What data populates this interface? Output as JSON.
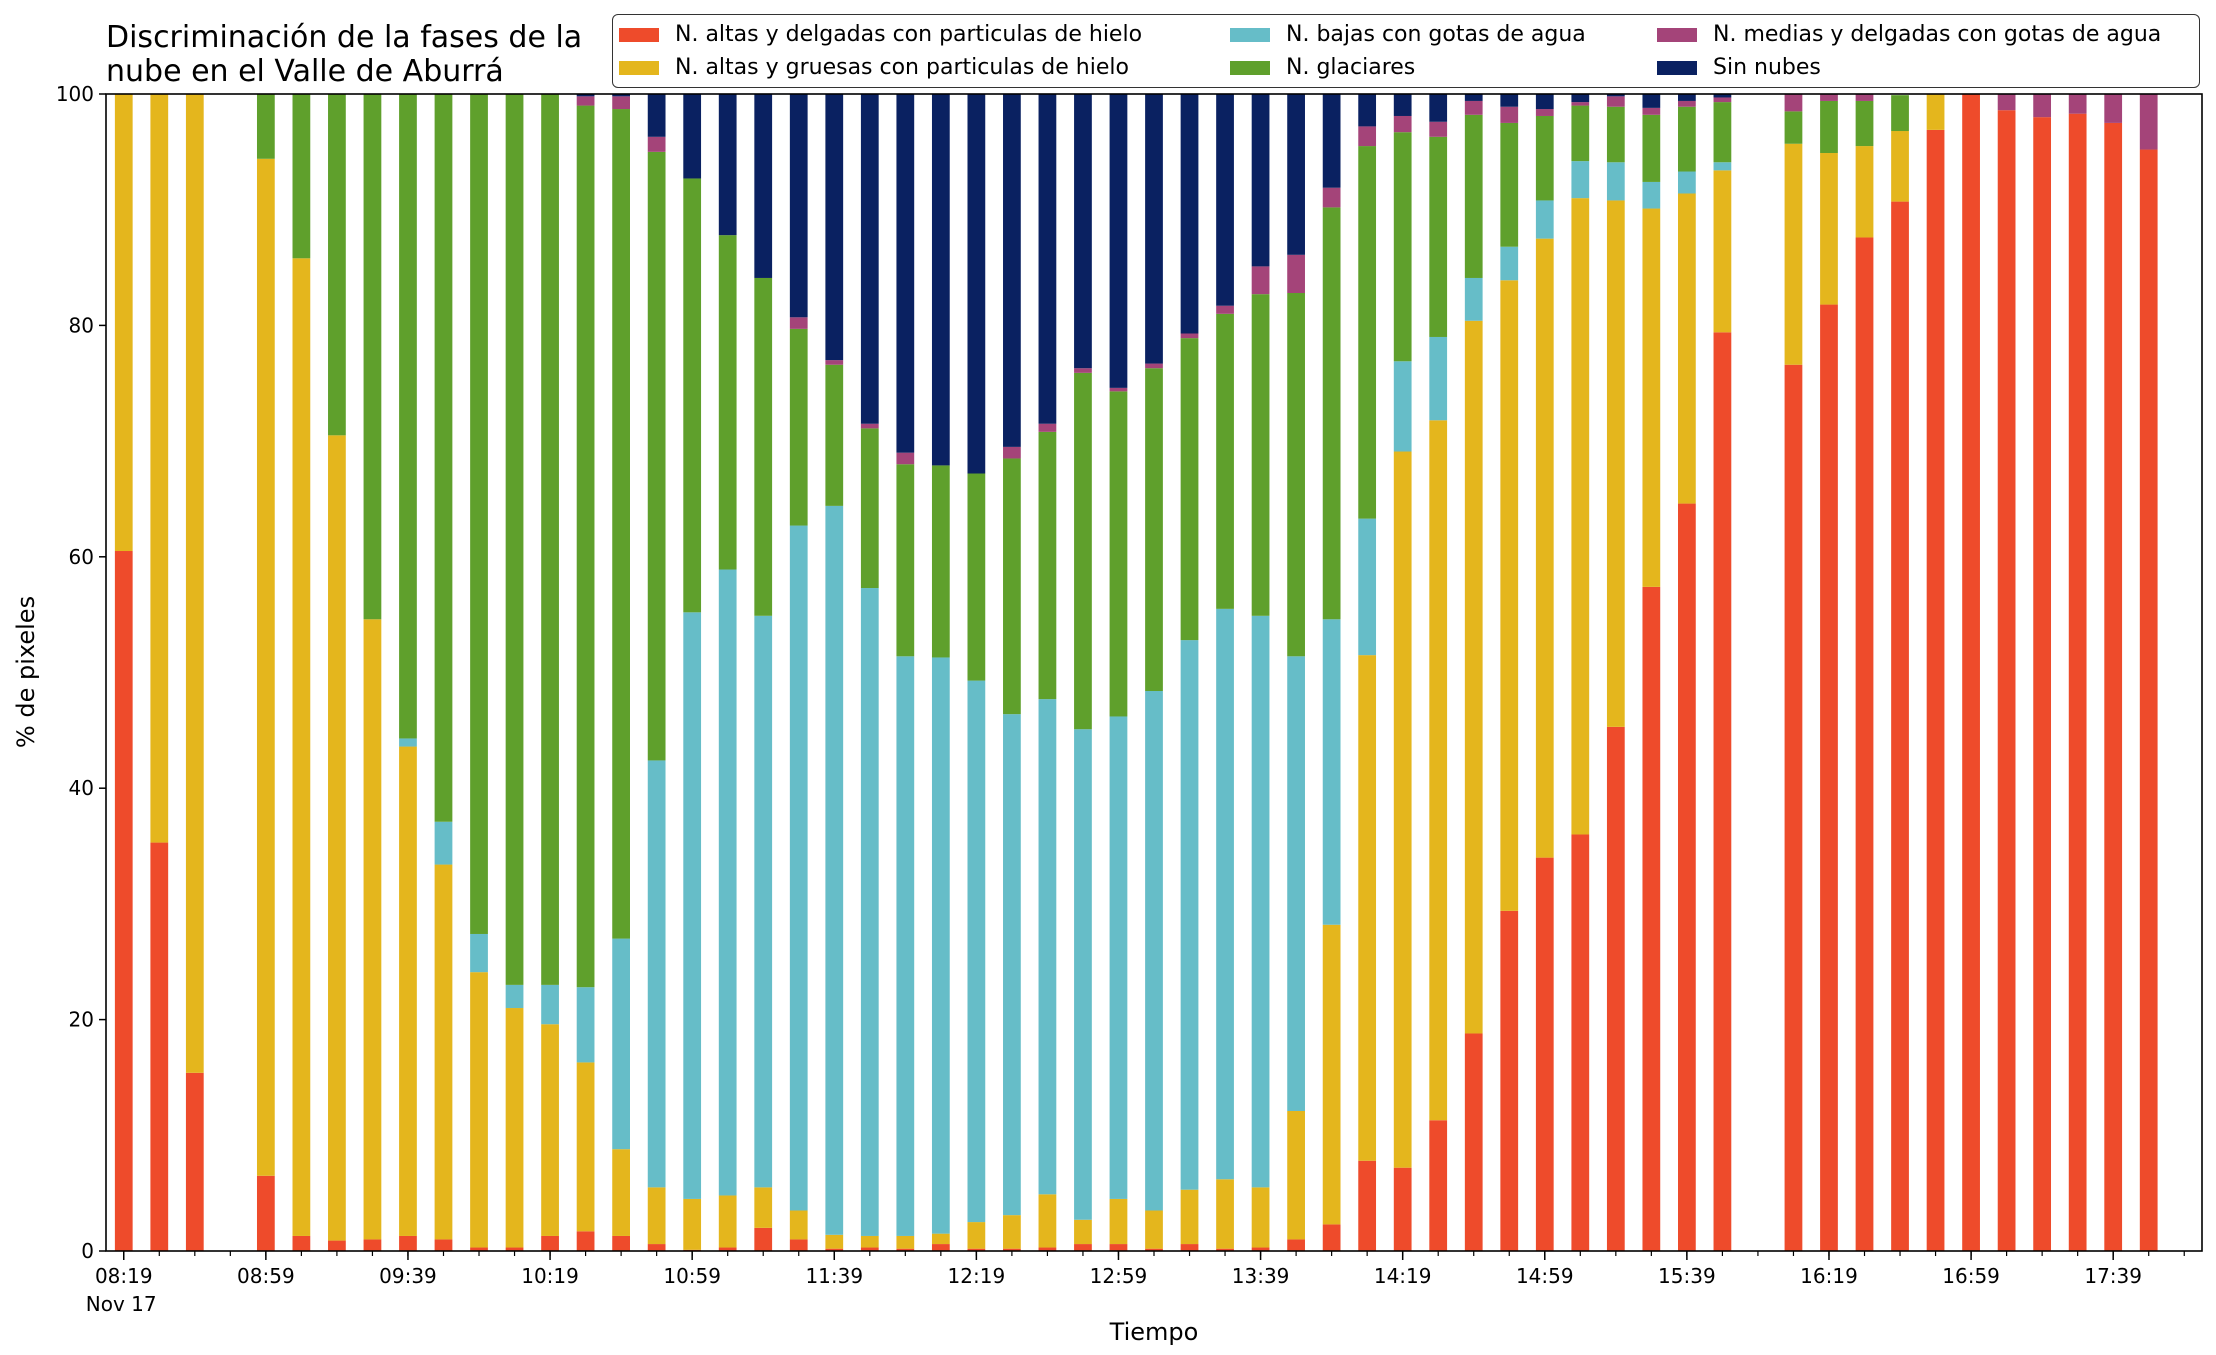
{
  "chart_data": {
    "type": "bar",
    "stacked": true,
    "title_lines": [
      "Discriminación de la fases de la",
      "nube en el Valle de Aburrá"
    ],
    "xlabel": "Tiempo",
    "ylabel": "% de pixeles",
    "ylim": [
      0,
      100
    ],
    "yticks": [
      0,
      20,
      40,
      60,
      80,
      100
    ],
    "xlim": [
      "08:14",
      "18:04"
    ],
    "bar_interval_minutes": 10,
    "x_tick_labels": [
      "08:19",
      "08:59",
      "09:39",
      "10:19",
      "10:59",
      "11:39",
      "12:19",
      "12:59",
      "13:39",
      "14:19",
      "14:59",
      "15:39",
      "16:19",
      "16:59",
      "17:39"
    ],
    "x_date_label": "Nov 17",
    "legend_position": "top-right",
    "x": [
      "08:19",
      "08:29",
      "08:39",
      "08:49",
      "08:59",
      "09:09",
      "09:19",
      "09:29",
      "09:39",
      "09:49",
      "09:59",
      "10:09",
      "10:19",
      "10:29",
      "10:39",
      "10:49",
      "10:59",
      "11:09",
      "11:19",
      "11:29",
      "11:39",
      "11:49",
      "11:59",
      "12:09",
      "12:19",
      "12:29",
      "12:39",
      "12:49",
      "12:59",
      "13:09",
      "13:19",
      "13:29",
      "13:39",
      "13:49",
      "13:59",
      "14:09",
      "14:19",
      "14:29",
      "14:39",
      "14:49",
      "14:59",
      "15:09",
      "15:19",
      "15:29",
      "15:39",
      "15:49",
      "15:59",
      "16:09",
      "16:19",
      "16:29",
      "16:39",
      "16:49",
      "16:59",
      "17:09",
      "17:19",
      "17:29",
      "17:39",
      "17:49"
    ],
    "series": [
      {
        "name": "N. altas y delgadas con particulas de hielo",
        "color": "#ee4b2b",
        "values": [
          60.5,
          35.3,
          15.4,
          null,
          6.5,
          1.3,
          0.9,
          1.0,
          1.3,
          1.0,
          0.3,
          0.3,
          1.3,
          1.7,
          1.3,
          0.6,
          0.1,
          0.3,
          2.0,
          1.0,
          0.2,
          0.3,
          0.2,
          0.6,
          0.2,
          0.2,
          0.3,
          0.6,
          0.6,
          0.2,
          0.6,
          0.2,
          0.3,
          1.0,
          2.3,
          7.8,
          7.2,
          11.3,
          18.8,
          29.4,
          34.0,
          36.0,
          45.3,
          57.4,
          64.6,
          79.4,
          null,
          76.6,
          81.8,
          87.6,
          90.7,
          96.9,
          100.0,
          98.6,
          98.0,
          98.3,
          97.5,
          95.2
        ]
      },
      {
        "name": "N. altas y gruesas con particulas de hielo",
        "color": "#e4b61d",
        "values": [
          39.5,
          64.7,
          84.6,
          null,
          87.9,
          84.5,
          69.6,
          53.6,
          42.3,
          32.4,
          23.8,
          20.7,
          18.3,
          14.6,
          7.5,
          4.9,
          4.4,
          4.5,
          3.5,
          2.5,
          1.2,
          1.0,
          1.1,
          0.9,
          2.3,
          2.9,
          4.6,
          2.1,
          3.9,
          3.3,
          4.7,
          6.0,
          5.2,
          11.1,
          25.9,
          43.7,
          61.9,
          60.5,
          61.6,
          54.5,
          53.5,
          55.0,
          45.5,
          32.7,
          26.8,
          14.0,
          null,
          19.1,
          13.1,
          7.9,
          6.1,
          3.1,
          0,
          0,
          0,
          0,
          0,
          0
        ]
      },
      {
        "name": "N. bajas con gotas de agua",
        "color": "#66bdc8",
        "values": [
          0,
          0,
          0,
          null,
          0,
          0,
          0,
          0,
          0.7,
          3.7,
          3.3,
          2.0,
          3.4,
          6.5,
          18.2,
          36.9,
          50.7,
          54.1,
          49.4,
          59.2,
          63.0,
          56.0,
          50.1,
          49.8,
          46.8,
          43.3,
          42.8,
          42.4,
          41.7,
          44.9,
          47.5,
          49.3,
          49.4,
          39.3,
          26.4,
          11.8,
          7.8,
          7.2,
          3.7,
          2.9,
          3.3,
          3.2,
          3.3,
          2.3,
          1.9,
          0.7,
          null,
          0,
          0,
          0,
          0,
          0,
          0,
          0,
          0,
          0,
          0,
          0
        ]
      },
      {
        "name": "N. glaciares",
        "color": "#5fa02c",
        "values": [
          0,
          0,
          0,
          null,
          5.6,
          14.2,
          29.5,
          45.4,
          55.7,
          62.9,
          72.6,
          77.0,
          77.0,
          76.2,
          71.7,
          52.6,
          37.5,
          28.9,
          29.2,
          17.0,
          12.2,
          13.8,
          16.6,
          16.6,
          17.9,
          22.1,
          23.1,
          30.8,
          28.1,
          27.9,
          26.1,
          25.5,
          27.8,
          31.4,
          35.6,
          32.2,
          19.8,
          17.3,
          14.1,
          10.7,
          7.3,
          4.8,
          4.8,
          5.8,
          5.6,
          5.2,
          null,
          2.8,
          4.5,
          3.9,
          3.1,
          0,
          0,
          0,
          0,
          0,
          0,
          0
        ]
      },
      {
        "name": "N. medias y delgadas con gotas de agua",
        "color": "#a44479",
        "values": [
          0,
          0,
          0,
          null,
          0,
          0,
          0,
          0,
          0,
          0,
          0,
          0,
          0.5,
          0.8,
          1.1,
          1.3,
          0,
          0,
          0,
          1.0,
          0.4,
          0.4,
          1.0,
          0,
          0,
          1.0,
          0.7,
          0.4,
          0.3,
          0.4,
          0.4,
          0.7,
          2.4,
          3.3,
          1.7,
          1.7,
          1.4,
          1.3,
          1.2,
          1.4,
          0.6,
          0.3,
          0.9,
          0.6,
          0.5,
          0.4,
          null,
          1.5,
          0.6,
          0.6,
          0,
          0,
          0,
          1.4,
          2.0,
          1.7,
          2.5,
          4.8
        ]
      },
      {
        "name": "Sin nubes",
        "color": "#0a2161",
        "values": [
          0,
          0,
          0,
          null,
          0,
          0,
          0,
          0,
          0,
          0,
          0,
          0,
          0.3,
          0.2,
          0.4,
          3.8,
          7.3,
          12.2,
          15.9,
          19.3,
          23.0,
          28.5,
          31.0,
          32.7,
          32.8,
          30.5,
          28.5,
          23.7,
          25.4,
          23.3,
          21.7,
          18.3,
          14.9,
          13.9,
          8.1,
          2.8,
          1.9,
          2.4,
          0.6,
          1.1,
          1.3,
          0.7,
          0.2,
          1.2,
          0.6,
          0.3,
          null,
          0,
          0,
          0,
          0,
          0,
          0,
          0,
          0,
          0,
          0,
          0
        ]
      }
    ]
  }
}
